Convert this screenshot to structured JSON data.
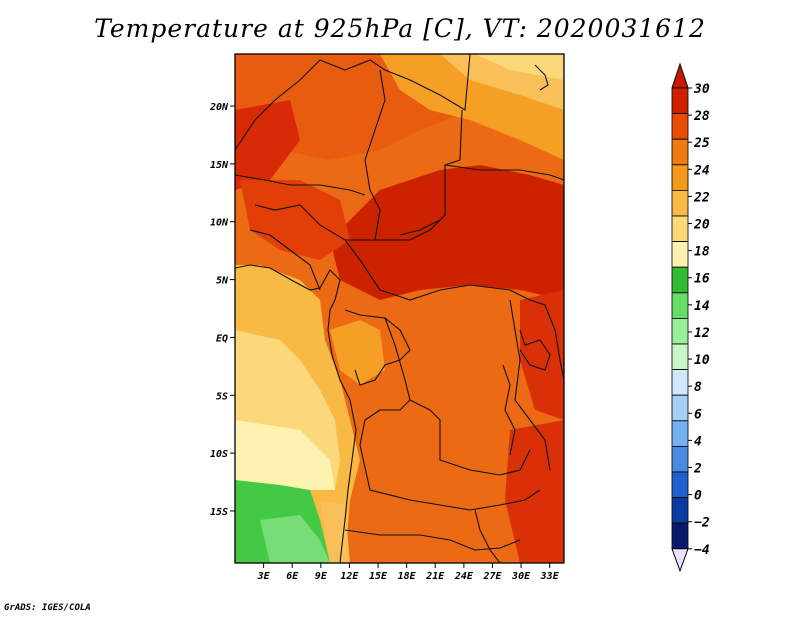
{
  "title": "Temperature at 925hPa [C], VT: 2020031612",
  "credit": "GrADS: IGES/COLA",
  "map": {
    "lon_range": [
      0,
      34.5
    ],
    "lat_range": [
      -19.5,
      24.5
    ],
    "lat_ticks": [
      {
        "value": 20,
        "label": "20N"
      },
      {
        "value": 15,
        "label": "15N"
      },
      {
        "value": 10,
        "label": "10N"
      },
      {
        "value": 5,
        "label": "5N"
      },
      {
        "value": 0,
        "label": "EQ"
      },
      {
        "value": -5,
        "label": "5S"
      },
      {
        "value": -10,
        "label": "10S"
      },
      {
        "value": -15,
        "label": "15S"
      }
    ],
    "lon_ticks": [
      {
        "value": 3,
        "label": "3E"
      },
      {
        "value": 6,
        "label": "6E"
      },
      {
        "value": 9,
        "label": "9E"
      },
      {
        "value": 12,
        "label": "12E"
      },
      {
        "value": 15,
        "label": "15E"
      },
      {
        "value": 18,
        "label": "18E"
      },
      {
        "value": 21,
        "label": "21E"
      },
      {
        "value": 24,
        "label": "24E"
      },
      {
        "value": 27,
        "label": "27E"
      },
      {
        "value": 30,
        "label": "30E"
      },
      {
        "value": 33,
        "label": "33E"
      }
    ]
  },
  "colorbar": {
    "levels": [
      "30",
      "28",
      "25",
      "24",
      "22",
      "20",
      "18",
      "16",
      "14",
      "12",
      "10",
      "8",
      "6",
      "4",
      "2",
      "0",
      "−2",
      "−4"
    ],
    "colors": [
      "#cc2200",
      "#e64d00",
      "#ee7a10",
      "#f59a1c",
      "#f8b945",
      "#fbd97a",
      "#fdf2b0",
      "#33bb33",
      "#66dd66",
      "#99ee99",
      "#c8f5c8",
      "#cfe6fb",
      "#a6cff5",
      "#76b0ee",
      "#4a8be2",
      "#1f5fd0",
      "#0d3a9e",
      "#0a1a6a"
    ],
    "top_triangle_color": "#cc1a00",
    "bottom_triangle_color": "#e8e4ff"
  }
}
